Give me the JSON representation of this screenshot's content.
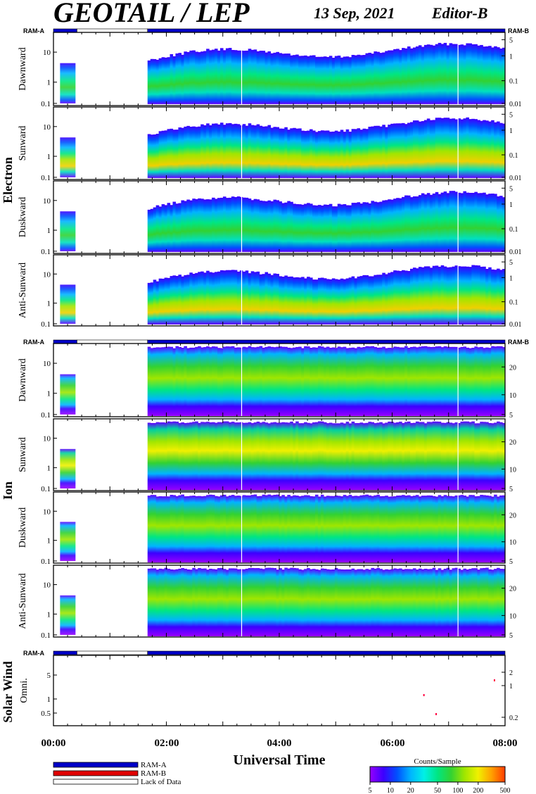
{
  "header": {
    "title": "GEOTAIL / LEP",
    "date": "13 Sep, 2021",
    "editor": "Editor-B"
  },
  "colors": {
    "ram_a": "#0000c8",
    "ram_b": "#e00000",
    "lack": "#ffffff",
    "frame": "#000000"
  },
  "ram_bar": {
    "ram_a_label": "RAM-A",
    "ram_b_label": "RAM-B",
    "segments": [
      {
        "start": "00:00",
        "end": "00:25",
        "state": "RAM-A"
      },
      {
        "start": "00:25",
        "end": "01:40",
        "state": "Lack of Data"
      },
      {
        "start": "01:40",
        "end": "08:00",
        "state": "RAM-A"
      }
    ]
  },
  "groups": [
    {
      "name": "Electron",
      "panels": [
        "Dawnward",
        "Sunward",
        "Duskward",
        "Anti-Sunward"
      ],
      "left_ticks": [
        "10",
        "1",
        "0.1"
      ],
      "right_ticks": [
        "5",
        "1",
        "0.1",
        "0.01"
      ]
    },
    {
      "name": "Ion",
      "panels": [
        "Dawnward",
        "Sunward",
        "Duskward",
        "Anti-Sunward"
      ],
      "left_ticks": [
        "10",
        "1",
        "0.1"
      ],
      "right_ticks": [
        "20",
        "10",
        "5"
      ]
    },
    {
      "name": "Solar Wind",
      "panels": [
        "Omni."
      ],
      "left_ticks": [
        "5",
        "1",
        "0.5"
      ],
      "right_ticks": [
        "2",
        "1",
        "0.2"
      ]
    }
  ],
  "x_axis": {
    "label": "Universal Time",
    "ticks": [
      "00:00",
      "02:00",
      "04:00",
      "06:00",
      "08:00"
    ]
  },
  "legend": {
    "items": [
      {
        "label": "RAM-A",
        "color": "#0000c8"
      },
      {
        "label": "RAM-B",
        "color": "#e00000"
      },
      {
        "label": "Lack of Data",
        "color": "#ffffff"
      }
    ]
  },
  "colorbar": {
    "title": "Counts/Sample",
    "ticks": [
      "5",
      "10",
      "20",
      "50",
      "100",
      "200",
      "500"
    ],
    "colors": [
      "#9600ff",
      "#3c00ff",
      "#0050ff",
      "#00b4ff",
      "#00f0e6",
      "#00e682",
      "#32d232",
      "#a0e600",
      "#f0f000",
      "#ffa000",
      "#ff3c00"
    ]
  },
  "chart_data": {
    "type": "heatmap",
    "title": "GEOTAIL / LEP",
    "subtitle": "13 Sep, 2021",
    "xlabel": "Universal Time",
    "xlim": [
      "00:00",
      "08:00"
    ],
    "colorbar": {
      "label": "Counts/Sample",
      "range": [
        5,
        500
      ],
      "scale": "log"
    },
    "data_gap": {
      "start": "00:25",
      "end": "01:40"
    },
    "panels": [
      {
        "group": "Electron",
        "name": "Dawnward",
        "y_scale": "log",
        "ylim": [
          0.1,
          20
        ]
      },
      {
        "group": "Electron",
        "name": "Sunward",
        "y_scale": "log",
        "ylim": [
          0.1,
          20
        ]
      },
      {
        "group": "Electron",
        "name": "Duskward",
        "y_scale": "log",
        "ylim": [
          0.1,
          20
        ]
      },
      {
        "group": "Electron",
        "name": "Anti-Sunward",
        "y_scale": "log",
        "ylim": [
          0.1,
          20
        ]
      },
      {
        "group": "Ion",
        "name": "Dawnward",
        "y_scale": "log",
        "ylim": [
          0.1,
          20
        ]
      },
      {
        "group": "Ion",
        "name": "Sunward",
        "y_scale": "log",
        "ylim": [
          0.1,
          20
        ]
      },
      {
        "group": "Ion",
        "name": "Duskward",
        "y_scale": "log",
        "ylim": [
          0.1,
          20
        ]
      },
      {
        "group": "Ion",
        "name": "Anti-Sunward",
        "y_scale": "log",
        "ylim": [
          0.1,
          20
        ]
      },
      {
        "group": "Solar Wind",
        "name": "Omni.",
        "y_scale": "log",
        "ylim": [
          0.3,
          8
        ]
      }
    ]
  }
}
